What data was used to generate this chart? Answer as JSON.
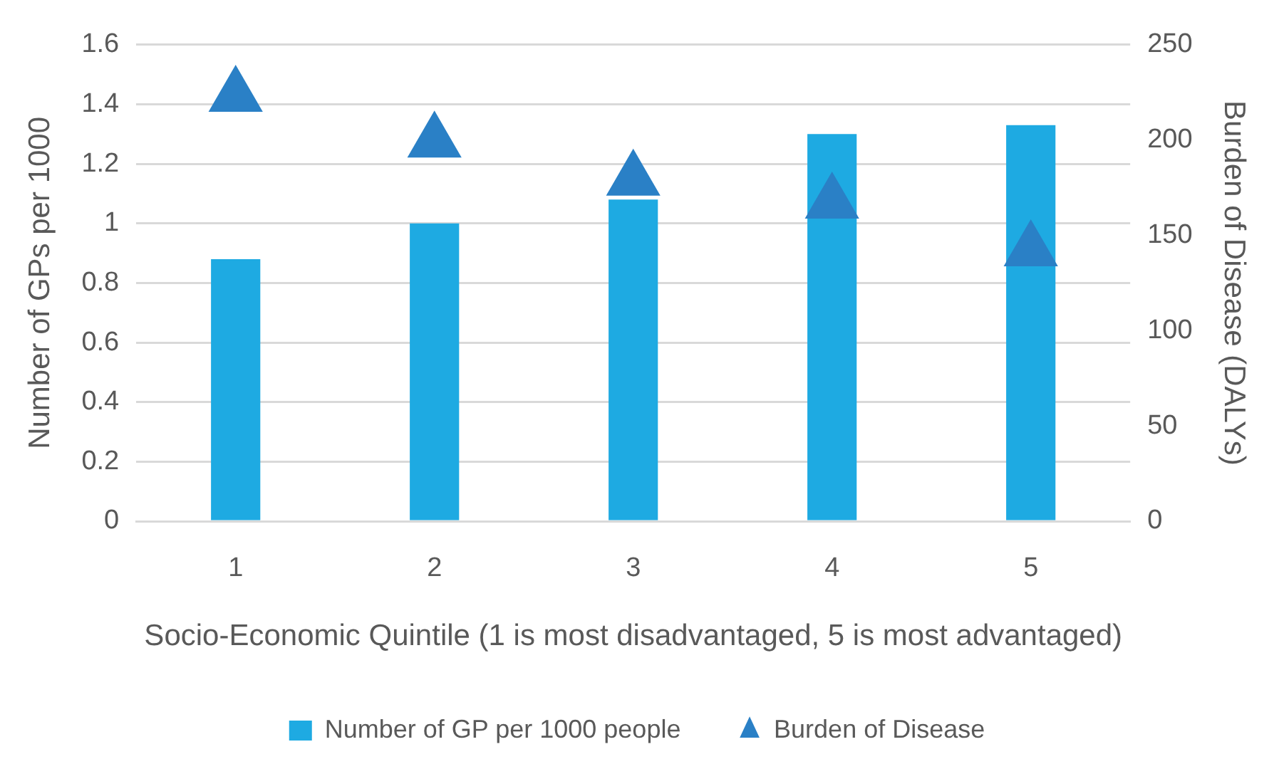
{
  "chart_data": {
    "type": "bar",
    "categories": [
      "1",
      "2",
      "3",
      "4",
      "5"
    ],
    "xlabel": "Socio-Economic Quintile (1 is most disadvantaged, 5 is most advantaged)",
    "ylabel": "Number of GPs per 1000",
    "y2label": "Burden of Disease (DALYs)",
    "ylim": [
      0,
      1.6
    ],
    "yticks": [
      0,
      0.2,
      0.4,
      0.6,
      0.8,
      1,
      1.2,
      1.4,
      1.6
    ],
    "y2lim": [
      0,
      250
    ],
    "y2ticks": [
      0,
      50,
      100,
      150,
      200,
      250
    ],
    "grid": "y",
    "legend": "bottom",
    "series": [
      {
        "name": "Number of GP per 1000 people",
        "color": "#1eaae2",
        "values": [
          0.88,
          1.0,
          1.08,
          1.3,
          1.33
        ]
      },
      {
        "name": "Burden of Disease",
        "type": "scatter",
        "axis": "y2",
        "marker": "triangle",
        "x": [
          "1",
          "2",
          "3",
          "4",
          "5"
        ],
        "color": "#2a80c6",
        "values": [
          223,
          199,
          179,
          167,
          142
        ]
      }
    ]
  }
}
